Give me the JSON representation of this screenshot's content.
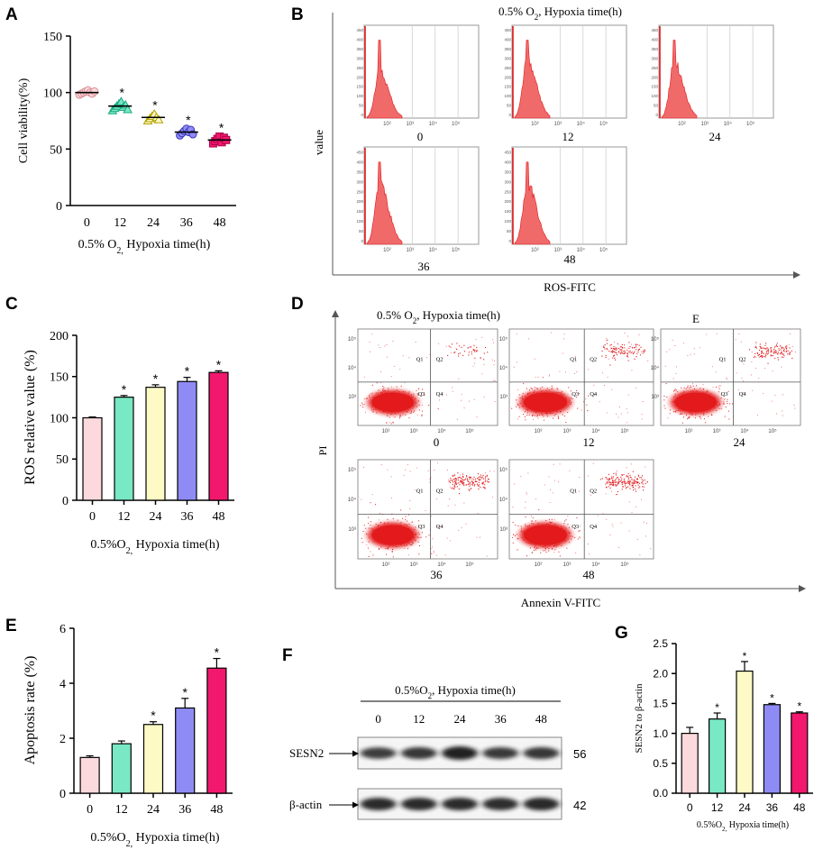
{
  "panels": {
    "a": {
      "letter": "A"
    },
    "b": {
      "letter": "B"
    },
    "c": {
      "letter": "C"
    },
    "d": {
      "letter": "D"
    },
    "e": {
      "letter": "E"
    },
    "f": {
      "letter": "F"
    },
    "g": {
      "letter": "G"
    }
  },
  "colors": {
    "c0": "#fcd9dc",
    "c12": "#79e8c4",
    "c24": "#fdfac6",
    "c36": "#8e8cf4",
    "c48": "#f2186e",
    "flow_red": "#e31a1c",
    "hist_fill": "#f06a6a"
  },
  "chart_data": [
    {
      "id": "A",
      "type": "scatter",
      "categories": [
        "0",
        "12",
        "24",
        "36",
        "48"
      ],
      "means": [
        100,
        88,
        78,
        65,
        58
      ],
      "points": [
        [
          98,
          99,
          100,
          101,
          102,
          100,
          99,
          101
        ],
        [
          84,
          86,
          88,
          90,
          92,
          87,
          89,
          85
        ],
        [
          75,
          77,
          79,
          81,
          78,
          76
        ],
        [
          62,
          64,
          66,
          68,
          65,
          67,
          63
        ],
        [
          55,
          57,
          59,
          61,
          56,
          60,
          58
        ]
      ],
      "sig": [
        "",
        "*",
        "*",
        "*",
        "*"
      ],
      "title": "",
      "xlabel_pre": "0.5% O",
      "xlabel_sub": "2,",
      "xlabel_post": " Hypoxia time(h)",
      "ylabel": "Cell  viability(%)",
      "ylim": [
        0,
        150
      ],
      "yticks": [
        "0",
        "50",
        "100",
        "150"
      ]
    },
    {
      "id": "C",
      "type": "bar",
      "categories": [
        "0",
        "12",
        "24",
        "36",
        "48"
      ],
      "values": [
        100,
        125,
        137,
        144,
        155
      ],
      "errors": [
        1,
        2,
        3,
        5,
        2
      ],
      "sig": [
        "",
        "*",
        "*",
        "*",
        "*"
      ],
      "xlabel_pre": "0.5%O",
      "xlabel_sub": "2,",
      "xlabel_post": " Hypoxia time(h)",
      "ylabel": "ROS relative value (%)",
      "ylim": [
        0,
        200
      ],
      "yticks": [
        "0",
        "50",
        "100",
        "150",
        "200"
      ]
    },
    {
      "id": "E",
      "type": "bar",
      "categories": [
        "0",
        "12",
        "24",
        "36",
        "48"
      ],
      "values": [
        1.3,
        1.8,
        2.5,
        3.1,
        4.55
      ],
      "errors": [
        0.06,
        0.1,
        0.1,
        0.35,
        0.35
      ],
      "sig": [
        "",
        "",
        "*",
        "*",
        "*"
      ],
      "xlabel_pre": "0.5%O",
      "xlabel_sub": "2,",
      "xlabel_post": " Hypoxia time(h)",
      "ylabel": "Apoptosis rate (%)",
      "ylim": [
        0,
        6
      ],
      "yticks": [
        "0",
        "2",
        "4",
        "6"
      ]
    },
    {
      "id": "G",
      "type": "bar",
      "categories": [
        "0",
        "12",
        "24",
        "36",
        "48"
      ],
      "values": [
        1.0,
        1.24,
        2.04,
        1.48,
        1.34
      ],
      "errors": [
        0.1,
        0.1,
        0.16,
        0.02,
        0.02
      ],
      "sig": [
        "",
        "*",
        "*",
        "*",
        "*"
      ],
      "xlabel_pre": "0.5%O",
      "xlabel_sub": "2,",
      "xlabel_post": " Hypoxia time(h)",
      "ylabel": "SESN2 to β-actin",
      "ylim": [
        0,
        2.5
      ],
      "yticks": [
        "0.0",
        "0.5",
        "1.0",
        "1.5",
        "2.0",
        "2.5"
      ]
    }
  ],
  "panel_b": {
    "title_pre": "0.5% O",
    "title_sub": "2",
    "title_post": ", Hypoxia time(h)",
    "ylabel": "value",
    "xlabel": "ROS-FITC",
    "plots": [
      {
        "label": "0"
      },
      {
        "label": "12"
      },
      {
        "label": "24"
      },
      {
        "label": "36"
      },
      {
        "label": "48"
      }
    ],
    "exp_labels": [
      "10²",
      "10³",
      "10⁴",
      "10⁵"
    ],
    "y_ticks": [
      "0",
      "50",
      "100",
      "150",
      "200",
      "250",
      "300",
      "350",
      "400",
      "450"
    ]
  },
  "panel_d": {
    "title_pre": "0.5% O",
    "title_sub": "2",
    "title_post": ", Hypoxia time(h)",
    "extra_label": "E",
    "ylabel": "PI",
    "xlabel": "Annexin V-FITC",
    "plots": [
      {
        "label": "0"
      },
      {
        "label": "12"
      },
      {
        "label": "24"
      },
      {
        "label": "36"
      },
      {
        "label": "48"
      }
    ],
    "quadrants": [
      "Q1",
      "Q2",
      "Q3",
      "Q4"
    ],
    "exp_labels": [
      "10²",
      "10³",
      "10⁴",
      "10⁵"
    ],
    "y_exp_labels": [
      "10³",
      "10⁴",
      "10⁵"
    ]
  },
  "panel_f": {
    "header_pre": "0.5%O",
    "header_sub": "2",
    "header_post": ", Hypoxia time(h)",
    "lanes": [
      "0",
      "12",
      "24",
      "36",
      "48"
    ],
    "rows": [
      {
        "name": "SESN2",
        "kda": "56",
        "intensity": [
          0.75,
          0.8,
          1.0,
          0.78,
          0.8
        ]
      },
      {
        "name": "β-actin",
        "kda": "42",
        "intensity": [
          0.9,
          0.9,
          0.9,
          0.88,
          0.92
        ]
      }
    ]
  }
}
